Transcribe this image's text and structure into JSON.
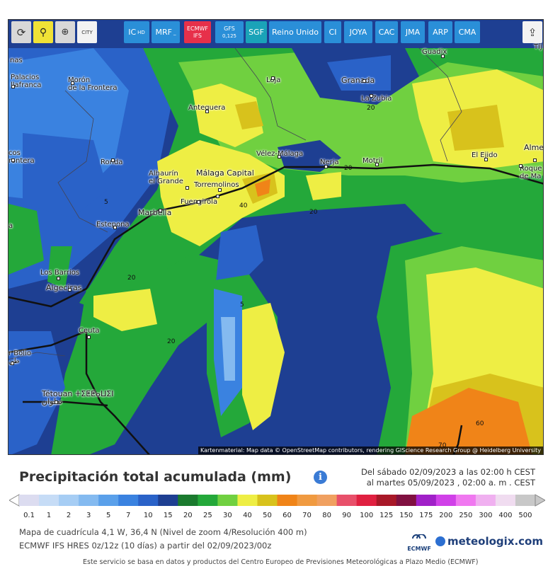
{
  "toolbar": {
    "refresh_icon": "refresh-icon",
    "location_icon": "location-pin-icon",
    "zoom_icon": "zoom-in-icon",
    "city_label": "CITY",
    "share_icon": "share-icon",
    "models": [
      {
        "label": "IC",
        "sub": "HD",
        "style": "blue"
      },
      {
        "label": "MRF",
        "sub": "_",
        "style": "blue"
      },
      {
        "label": "ECMWF IFS",
        "sub": "",
        "style": "red"
      },
      {
        "label": "GFS",
        "sub": "0,125",
        "style": "blue"
      },
      {
        "label": "SGF",
        "sub": "",
        "style": "teal"
      },
      {
        "label": "Reino Unido",
        "sub": "",
        "style": "blue"
      },
      {
        "label": "CI",
        "sub": "",
        "style": "blue"
      },
      {
        "label": "JOYA",
        "sub": "",
        "style": "blue"
      },
      {
        "label": "CAC",
        "sub": "",
        "style": "blue"
      },
      {
        "label": "JMA",
        "sub": "",
        "style": "blue"
      },
      {
        "label": "ARP",
        "sub": "",
        "style": "blue"
      },
      {
        "label": "CMA",
        "sub": "",
        "style": "blue"
      }
    ]
  },
  "map": {
    "cities": [
      {
        "name": "nas",
        "dot": false
      },
      {
        "name": "Palacios\nllafranca",
        "dot": true
      },
      {
        "name": "Morón\nde la Frontera",
        "dot": true
      },
      {
        "name": "Loja",
        "dot": true
      },
      {
        "name": "Granada",
        "dot": true,
        "big": true
      },
      {
        "name": "Guadix",
        "dot": true
      },
      {
        "name": "La Zubia",
        "dot": true
      },
      {
        "name": "Antequera",
        "dot": true
      },
      {
        "name": "cos\nrontera",
        "dot": true
      },
      {
        "name": "Ronda",
        "dot": true
      },
      {
        "name": "Vélez-Málaga",
        "dot": true
      },
      {
        "name": "Nerja",
        "dot": true
      },
      {
        "name": "Motril",
        "dot": true
      },
      {
        "name": "El Ejido",
        "dot": true
      },
      {
        "name": "Alme",
        "dot": true,
        "big": true
      },
      {
        "name": "Roque\nde Ma",
        "dot": true
      },
      {
        "name": "Alhaurín\nel Grande",
        "dot": true
      },
      {
        "name": "Málaga Capital",
        "dot": true,
        "big": true
      },
      {
        "name": "Torremolinos",
        "dot": true
      },
      {
        "name": "Fuengirola",
        "dot": true
      },
      {
        "name": "Marbella",
        "dot": true,
        "big": true
      },
      {
        "name": "Estepona",
        "dot": true
      },
      {
        "name": "Los Barrios",
        "dot": true
      },
      {
        "name": "Algeciras",
        "dot": true,
        "big": true
      },
      {
        "name": "Ceuta",
        "dot": true
      },
      {
        "name": "r Bolio\nطن",
        "dot": true
      },
      {
        "name": "Tétouan ⵜⵉⵟⵟⴰⵡⵉⵏ\nتطوان",
        "dot": true,
        "big": true
      },
      {
        "name": "Tíj",
        "dot": false
      },
      {
        "name": "a",
        "dot": false
      }
    ],
    "contours": [
      "5",
      "20",
      "20",
      "40",
      "20",
      "20",
      "5",
      "20",
      "60",
      "70"
    ],
    "attribution": "Kartenmaterial: Map data © OpenStreetMap contributors, rendering GIScience Research Group @ Heidelberg University"
  },
  "legend": {
    "title": "Precipitación total acumulada (mm)",
    "info_icon": "info-icon",
    "period_line1": "Del sábado 02/09/2023 a  las 02:00 h  CEST",
    "period_line2": "al martes 05/09/2023 ,  02:00 a. m . CEST",
    "scale": [
      {
        "value": "0.1",
        "color": "#dcdcf0"
      },
      {
        "value": "1",
        "color": "#c6dcf6"
      },
      {
        "value": "2",
        "color": "#a6cdf4"
      },
      {
        "value": "3",
        "color": "#84baf0"
      },
      {
        "value": "5",
        "color": "#5aa0ea"
      },
      {
        "value": "7",
        "color": "#3a82e0"
      },
      {
        "value": "10",
        "color": "#2a62c8"
      },
      {
        "value": "15",
        "color": "#1e3f92"
      },
      {
        "value": "20",
        "color": "#1a7a2e"
      },
      {
        "value": "25",
        "color": "#24a83a"
      },
      {
        "value": "30",
        "color": "#70d040"
      },
      {
        "value": "40",
        "color": "#eeee44"
      },
      {
        "value": "50",
        "color": "#d8c21c"
      },
      {
        "value": "60",
        "color": "#f08418"
      },
      {
        "value": "70",
        "color": "#f09a40"
      },
      {
        "value": "80",
        "color": "#f0a060"
      },
      {
        "value": "90",
        "color": "#e8506a"
      },
      {
        "value": "100",
        "color": "#e02040"
      },
      {
        "value": "125",
        "color": "#a81828"
      },
      {
        "value": "150",
        "color": "#801040"
      },
      {
        "value": "175",
        "color": "#a020c8"
      },
      {
        "value": "200",
        "color": "#d040e8"
      },
      {
        "value": "250",
        "color": "#f078f0"
      },
      {
        "value": "300",
        "color": "#f0b0f0"
      },
      {
        "value": "400",
        "color": "#f0dcf0"
      },
      {
        "value": "500",
        "color": "#c8c8c8"
      }
    ],
    "desc_line1": "Mapa de cuadrícula 4,1 W, 36,4 N (Nivel de zoom 4/Resolución 400 m)",
    "desc_line2": "ECMWF IFS HRES 0z/12z (10 días) a partir del 02/09/2023/00z",
    "ecmwf_label": "ECMWF",
    "brand": "meteologix.com",
    "footer": "Este servicio se basa en datos y productos del Centro Europeo de Previsiones Meteorológicas a Plazo Medio (ECMWF)"
  }
}
